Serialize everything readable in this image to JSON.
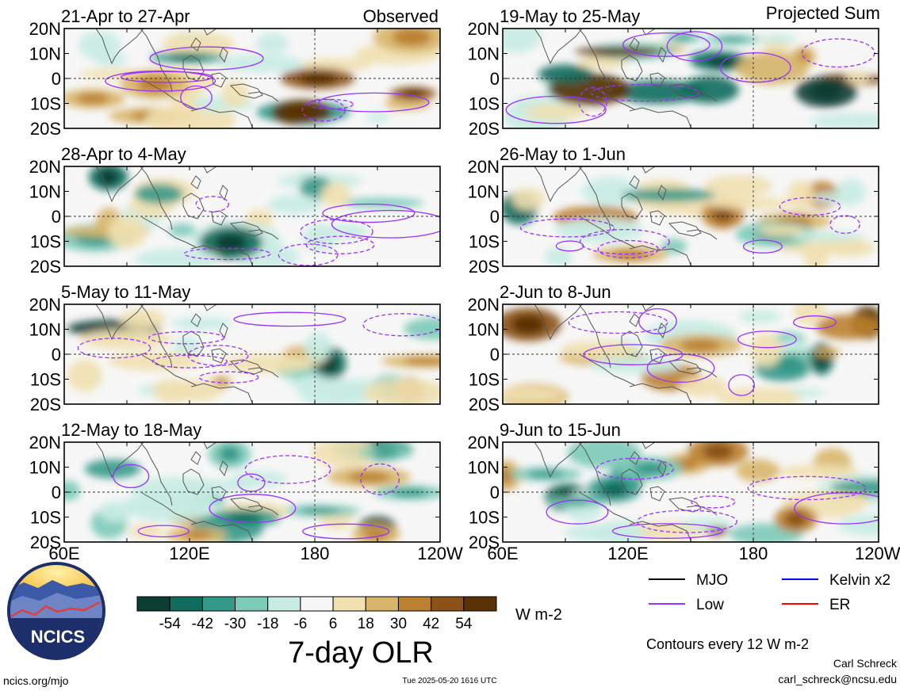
{
  "chart_data": {
    "type": "heatmap",
    "title": "7-day OLR",
    "units": "W m-2",
    "colorbar": {
      "ticks": [
        "-54",
        "-42",
        "-30",
        "-18",
        "-6",
        "6",
        "18",
        "30",
        "42",
        "54"
      ],
      "colors": [
        "#0b3d33",
        "#0f6b5c",
        "#35998a",
        "#7ccab8",
        "#c8ece3",
        "#f7f7f7",
        "#f1e0b0",
        "#d8b56a",
        "#bb8130",
        "#8b5118",
        "#5a3206"
      ]
    },
    "x_ticks": [
      "60E",
      "120E",
      "180",
      "120W"
    ],
    "y_ticks": [
      "20N",
      "10N",
      "0",
      "10S",
      "20S"
    ],
    "xlim": [
      60,
      240
    ],
    "ylim": [
      -20,
      20
    ],
    "column_labels": {
      "left": "Observed",
      "right": "Projected Sum"
    },
    "panels_left": [
      {
        "period": "21-Apr to 27-Apr"
      },
      {
        "period": "28-Apr to 4-May"
      },
      {
        "period": "5-May to 11-May"
      },
      {
        "period": "12-May to 18-May"
      }
    ],
    "panels_right": [
      {
        "period": "19-May to 25-May"
      },
      {
        "period": "26-May to 1-Jun"
      },
      {
        "period": "2-Jun to 8-Jun"
      },
      {
        "period": "9-Jun to 15-Jun"
      }
    ],
    "legend": [
      {
        "label": "MJO",
        "color": "#000000"
      },
      {
        "label": "Kelvin x2",
        "color": "#0000ff"
      },
      {
        "label": "Low",
        "color": "#9b30ff"
      },
      {
        "label": "ER",
        "color": "#ff0000"
      }
    ],
    "contour_note": "Contours every 12 W m-2"
  },
  "footer": {
    "logo_text": "NCICS",
    "url": "ncics.org/mjo",
    "timestamp": "Tue 2025-05-20 1616 UTC",
    "author": "Carl Schreck",
    "email": "carl_schreck@ncsu.edu"
  }
}
